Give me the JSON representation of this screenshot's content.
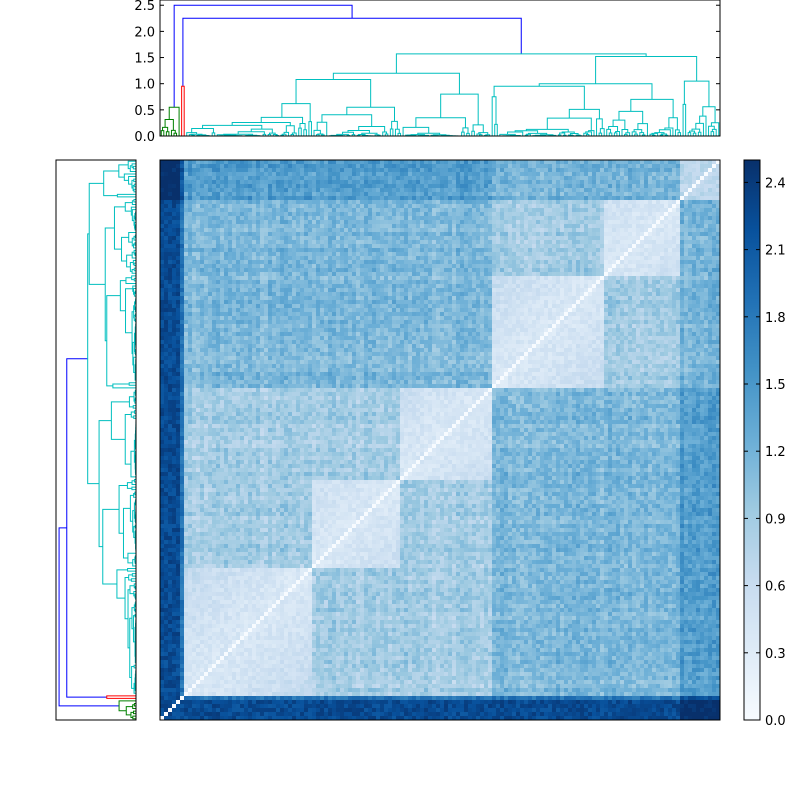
{
  "chart_data": [
    {
      "type": "dendrogram",
      "panel": "top",
      "ylim": [
        0,
        2.6
      ],
      "ytick_labels": [
        "0.0",
        "0.5",
        "1.0",
        "1.5",
        "2.0",
        "2.5"
      ],
      "link_colors": [
        "#0000ff",
        "#00bfbf",
        "#008000",
        "#ff0000"
      ],
      "major_merge_heights": [
        2.5,
        2.25,
        1.57,
        1.5,
        1.2,
        0.95
      ]
    },
    {
      "type": "dendrogram",
      "panel": "left",
      "link_colors": [
        "#0000ff",
        "#00bfbf",
        "#008000",
        "#ff0000"
      ]
    },
    {
      "type": "heatmap",
      "description_matrix": "symmetric distance matrix, diagonal 0",
      "colormap": "Blues",
      "vmin": 0.0,
      "vmax": 2.5,
      "colorbar_ticks": [
        0.0,
        0.3,
        0.6,
        0.9,
        1.2,
        1.5,
        1.8,
        2.1,
        2.4
      ],
      "colorbar_tick_labels": [
        "0.0",
        "0.3",
        "0.6",
        "0.9",
        "1.2",
        "1.5",
        "1.8",
        "2.1",
        "2.4"
      ]
    }
  ]
}
